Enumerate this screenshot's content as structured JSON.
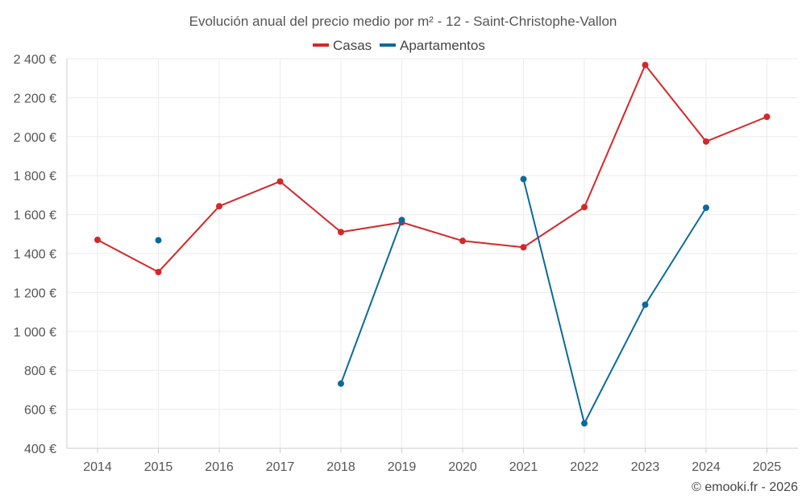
{
  "chart_data": {
    "type": "line",
    "title": "Evolución anual del precio medio por m² - 12 - Saint-Christophe-Vallon",
    "x": [
      "2014",
      "2015",
      "2016",
      "2017",
      "2018",
      "2019",
      "2020",
      "2021",
      "2022",
      "2023",
      "2024",
      "2025"
    ],
    "ylim": [
      400,
      2450
    ],
    "yticks": [
      400,
      600,
      800,
      1000,
      1200,
      1400,
      1600,
      1800,
      2000,
      2200,
      2400
    ],
    "ytick_labels": [
      "400 €",
      "600 €",
      "800 €",
      "1 000 €",
      "1 200 €",
      "1 400 €",
      "1 600 €",
      "1 800 €",
      "2 000 €",
      "2 200 €",
      "2 400 €"
    ],
    "grid": true,
    "legend_position": "top-center",
    "series": [
      {
        "name": "Casas",
        "color": "#d62728",
        "values": [
          1470,
          1305,
          1643,
          1770,
          1510,
          1560,
          1465,
          1432,
          1638,
          2368,
          1975,
          2102
        ]
      },
      {
        "name": "Apartamentos",
        "color": "#0b6a9b",
        "values": [
          null,
          1468,
          null,
          null,
          732,
          1572,
          null,
          1782,
          528,
          1137,
          1635,
          null
        ]
      }
    ]
  },
  "footer": "© emooki.fr - 2026"
}
